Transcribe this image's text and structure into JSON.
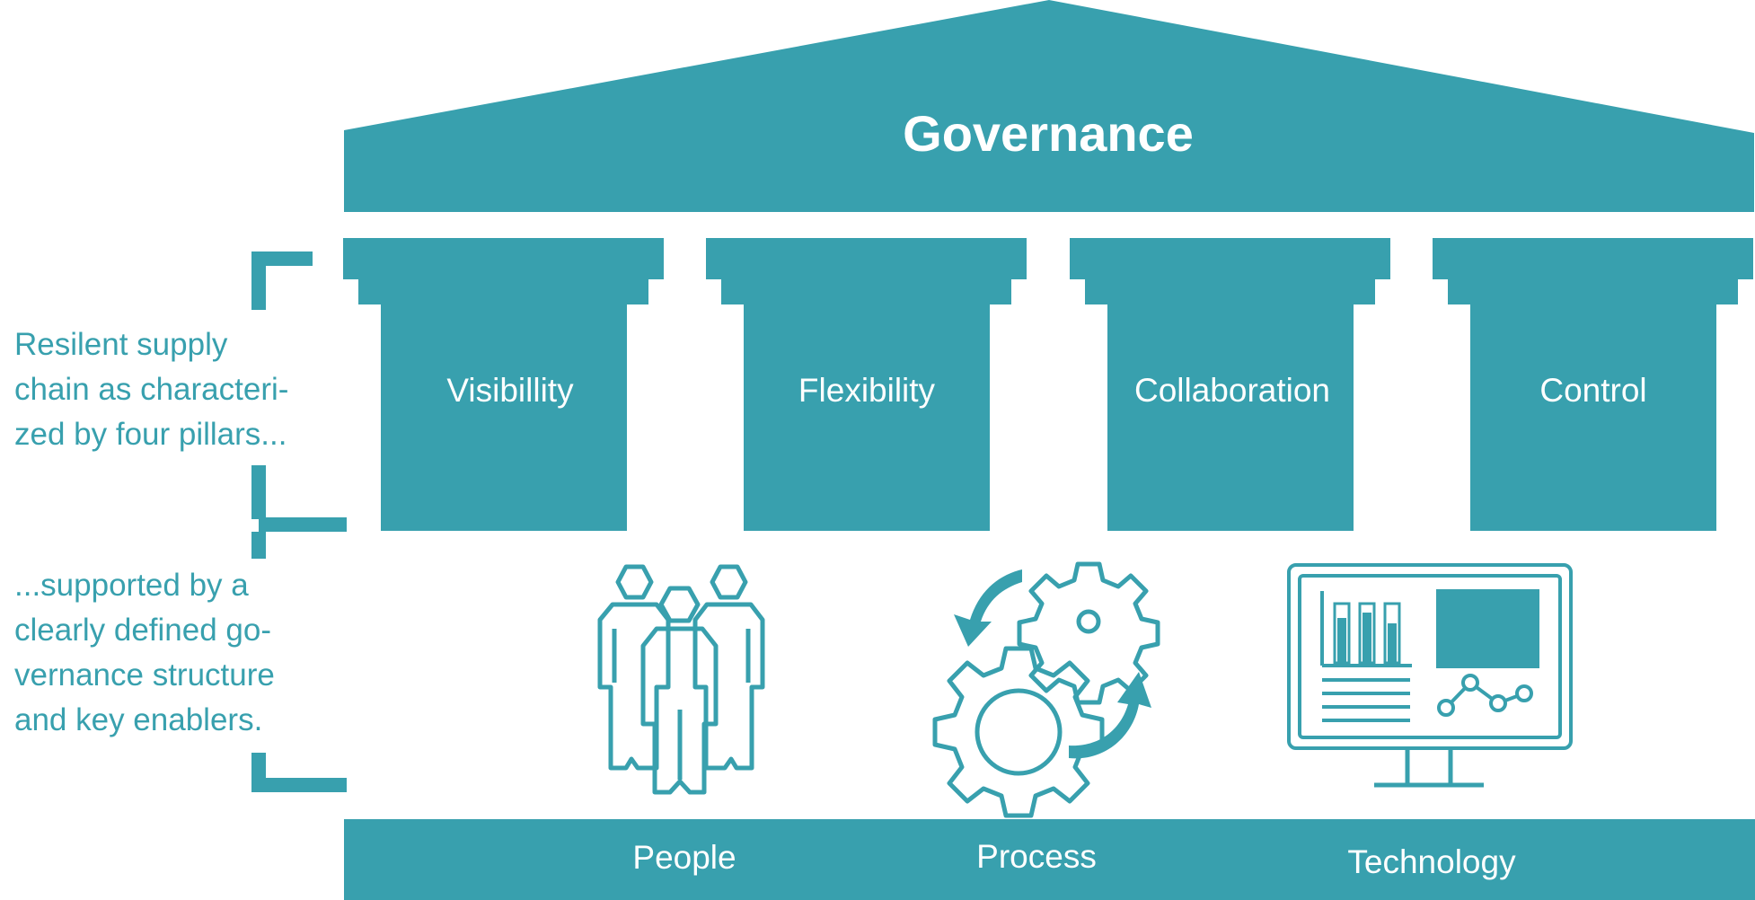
{
  "roof": {
    "title": "Governance"
  },
  "pillars": [
    {
      "label": "Visibillity"
    },
    {
      "label": "Flexibility"
    },
    {
      "label": "Collaboration"
    },
    {
      "label": "Control"
    }
  ],
  "enablers": [
    {
      "label": "People",
      "icon": "people-icon"
    },
    {
      "label": "Process",
      "icon": "gears-cycle-icon"
    },
    {
      "label": "Technology",
      "icon": "monitor-dashboard-icon"
    }
  ],
  "side_notes": {
    "pillars_note": [
      "Resilent supply",
      "chain as characteri-",
      "zed by four pillars..."
    ],
    "governance_note": [
      "...supported by a",
      "clearly defined go-",
      "vernance structure",
      "and key enablers."
    ]
  },
  "colors": {
    "primary": "#38a0ae",
    "background": "#ffffff",
    "text_on_primary": "#ffffff"
  }
}
